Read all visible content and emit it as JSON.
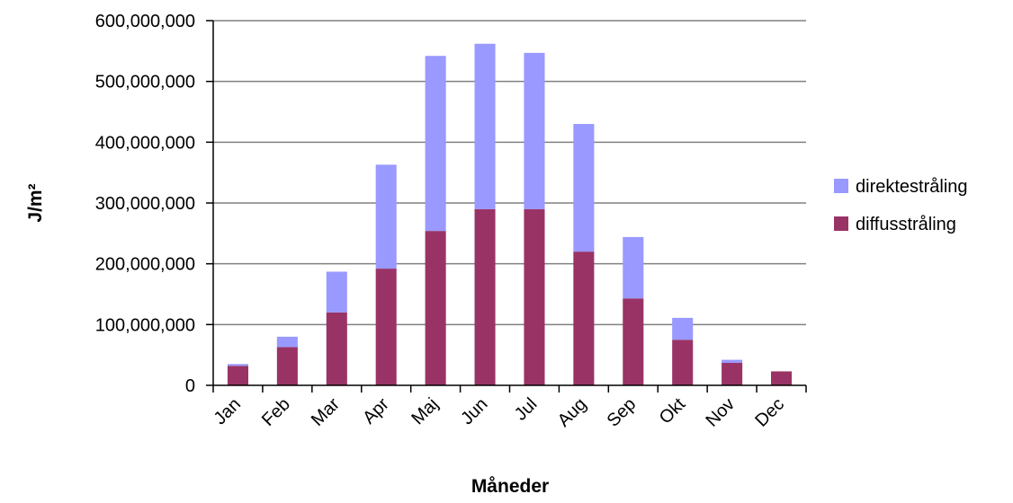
{
  "chart_data": {
    "type": "bar",
    "stacked": true,
    "title": "",
    "xlabel": "Måneder",
    "ylabel": "J/m²",
    "ylim": [
      0,
      600000000
    ],
    "yticks": [
      0,
      100000000,
      200000000,
      300000000,
      400000000,
      500000000,
      600000000
    ],
    "ytick_labels": [
      "0",
      "100,000,000",
      "200,000,000",
      "300,000,000",
      "400,000,000",
      "500,000,000",
      "600,000,000"
    ],
    "grid": "horizontal",
    "legend_position": "right",
    "categories": [
      "Jan",
      "Feb",
      "Mar",
      "Apr",
      "Maj",
      "Jun",
      "Jul",
      "Aug",
      "Sep",
      "Okt",
      "Nov",
      "Dec"
    ],
    "series": [
      {
        "name": "diffusstråling",
        "color": "#993366",
        "values": [
          32000000,
          63000000,
          120000000,
          192000000,
          254000000,
          290000000,
          290000000,
          220000000,
          143000000,
          75000000,
          37000000,
          23000000
        ]
      },
      {
        "name": "direktestråling",
        "color": "#9999ff",
        "values": [
          3000000,
          17000000,
          67000000,
          171000000,
          288000000,
          272000000,
          257000000,
          210000000,
          101000000,
          36000000,
          5000000,
          0
        ]
      }
    ],
    "legend": [
      "direktestråling",
      "diffusstråling"
    ]
  }
}
